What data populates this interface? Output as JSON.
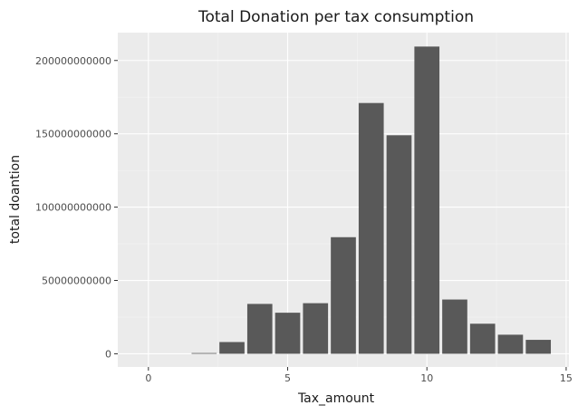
{
  "chart_data": {
    "type": "bar",
    "title": "Total Donation per tax consumption",
    "xlabel": "Tax_amount",
    "ylabel": "total doantion",
    "x": [
      1,
      2,
      3,
      4,
      5,
      6,
      7,
      8,
      9,
      10,
      11,
      12,
      13,
      14
    ],
    "values": [
      0,
      500000000,
      8000000000,
      34000000000,
      28000000000,
      34500000000,
      79500000000,
      171000000000,
      149000000000,
      209500000000,
      37000000000,
      20500000000,
      13000000000,
      9500000000
    ],
    "xlim": [
      -1.1,
      15.1
    ],
    "ylim": [
      -9000000000,
      219000000000
    ],
    "xticks": [
      0,
      5,
      10,
      15
    ],
    "xtick_labels": [
      "0",
      "5",
      "10",
      "15"
    ],
    "yticks": [
      0,
      50000000000,
      100000000000,
      150000000000,
      200000000000
    ],
    "ytick_labels": [
      "0",
      "50000000000",
      "100000000000",
      "150000000000",
      "200000000000"
    ],
    "grid": true,
    "legend": "none",
    "colors": {
      "bar": "#595959",
      "panel": "#ebebeb",
      "grid_major": "#ffffff",
      "grid_minor": "#f5f5f5",
      "text": "#1a1a1a",
      "tick_text": "#4d4d4d",
      "tick_mark": "#333333"
    }
  }
}
